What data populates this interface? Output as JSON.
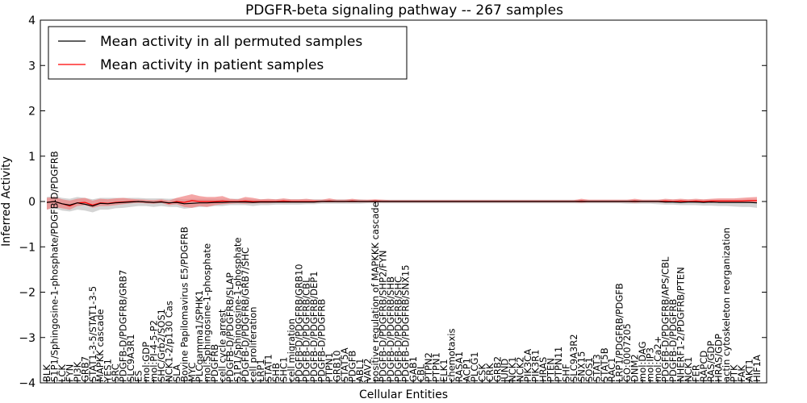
{
  "chart_data": {
    "type": "line",
    "title": "PDGFR-beta signaling pathway -- 267 samples",
    "xlabel": "Cellular Entities",
    "ylabel": "Inferred Activity",
    "ylim": [
      -4,
      4
    ],
    "yticks": [
      "−4",
      "−3",
      "−2",
      "−1",
      "0",
      "1",
      "2",
      "3",
      "4"
    ],
    "legend_position": "top-left",
    "colors": {
      "permuted_line": "#000000",
      "patient_line": "#ff0000",
      "permuted_band": "#b0b0b0",
      "patient_band": "#f08080",
      "frame": "#000000"
    },
    "categories": [
      "BLK",
      "S1P1/Sphingosine-1-phosphate/PDGFB-D/PDGFRB",
      "LCK",
      "FYN",
      "PI3K",
      "GRB7",
      "STAT1-3-5/STAT1-3-5",
      "MAPKK cascade",
      "YES1",
      "SRC",
      "PDGFB-D/PDGFRB/GRB7",
      "SLC9A3R1",
      "ES",
      "mol:GDP",
      "mol:PI-4-5-P2",
      "SHC/Grb2/SOS1",
      "NCK1-2/p130 Cas",
      "SLA",
      "Bovine Papilomavirus E5/PDGFRB",
      "MYC",
      "PLCgamma1/SPHK1",
      "mol:Sphingosine-1-phosphate",
      "PDGFRB",
      "cell cycle arrest",
      "PDGFB-D/PDGFRB/SLAP",
      "S1P1/Sphingosine-1-phosphate",
      "PDGFB-D/PDGFRB/GRB7/SHC",
      "cell proliferation",
      "LRP1",
      "STAT1",
      "SHB",
      "SHC1",
      "cell migration",
      "PDGFB-D/PDGFRB/GRB10",
      "PDGFB-D/PDGFRB/CBL",
      "PDGFB-D/PDGFRB/DEP1",
      "PDGFB-D/PDGFRB",
      "PTPN1",
      "GRB10",
      "STAT5A",
      "PDGFB",
      "ABL1",
      "VAV2",
      "positive regulation of MAPKKK cascade",
      "PDGFB-D/PDGFRB/SHP2/FYN",
      "PDGFB-D/PDGFRB/SHB",
      "PDGFB-D/PDGFRB/SHC",
      "PDGFB-D/PDGFRB/SNX15",
      "GAB1",
      "CBL",
      "PTPN2",
      "PTPN1",
      "ELK1",
      "chemotaxis",
      "RASA1",
      "ACP1",
      "PLCG1",
      "CSK",
      "CRK",
      "GRB2",
      "JUND",
      "NCK1",
      "NCK2",
      "PIK3CA",
      "PIK3R1",
      "HRAS",
      "PTEN",
      "PTPN11",
      "SHF",
      "SLC9A3R2",
      "SNX15",
      "SOS1",
      "STAT3",
      "STAT5B",
      "RAC1",
      "LRP1/PDGFRB/PDGFB",
      "GO:0007205",
      "DNM2",
      "mol:DAG",
      "mol:IP3",
      "mol:Ca2+",
      "PDGFB-D/PDGFRB/APS/CBL",
      "PDGFB-D/PDGFRB",
      "NHERF1-2/PDGFRB/PTEN",
      "NCK1",
      "FER",
      "RAPCD",
      "RAS/GDP",
      "HRAS/GDP",
      "actin cytoskeleton reorganization",
      "PTK",
      "FAK",
      "AKT1",
      "HIF1A"
    ],
    "series": [
      {
        "name": "Mean activity in all permuted samples",
        "values": [
          -0.02,
          0.0,
          -0.05,
          -0.08,
          -0.03,
          -0.06,
          -0.1,
          -0.04,
          -0.05,
          -0.03,
          -0.02,
          -0.01,
          0.0,
          -0.01,
          -0.02,
          -0.01,
          -0.03,
          -0.02,
          -0.05,
          -0.04,
          -0.03,
          -0.03,
          -0.02,
          -0.02,
          -0.01,
          -0.01,
          -0.01,
          -0.02,
          -0.01,
          -0.01,
          -0.01,
          -0.01,
          -0.01,
          -0.01,
          -0.01,
          -0.01,
          0.0,
          0.0,
          0.0,
          0.0,
          0.0,
          0.0,
          0.0,
          0.0,
          0.0,
          0.0,
          0.0,
          0.0,
          0.0,
          0.0,
          0.0,
          0.0,
          0.0,
          0.0,
          0.0,
          0.0,
          0.0,
          0.0,
          0.0,
          0.0,
          0.0,
          0.0,
          0.0,
          0.0,
          0.0,
          0.0,
          0.0,
          0.0,
          0.0,
          0.0,
          0.0,
          0.0,
          0.0,
          0.0,
          0.0,
          0.0,
          0.0,
          0.0,
          0.0,
          0.0,
          0.0,
          -0.01,
          -0.01,
          -0.02,
          -0.01,
          -0.01,
          -0.02,
          -0.01,
          -0.02,
          -0.02,
          -0.02,
          -0.02,
          -0.02,
          -0.03
        ],
        "lower": [
          -0.18,
          -0.15,
          -0.2,
          -0.22,
          -0.18,
          -0.2,
          -0.24,
          -0.18,
          -0.18,
          -0.15,
          -0.14,
          -0.12,
          -0.1,
          -0.1,
          -0.12,
          -0.1,
          -0.12,
          -0.12,
          -0.16,
          -0.14,
          -0.12,
          -0.12,
          -0.1,
          -0.1,
          -0.08,
          -0.08,
          -0.08,
          -0.1,
          -0.08,
          -0.08,
          -0.07,
          -0.07,
          -0.07,
          -0.07,
          -0.06,
          -0.06,
          -0.05,
          -0.05,
          -0.05,
          -0.05,
          -0.05,
          -0.05,
          -0.04,
          -0.04,
          -0.04,
          -0.04,
          -0.04,
          -0.04,
          -0.04,
          -0.04,
          -0.04,
          -0.04,
          -0.04,
          -0.04,
          -0.04,
          -0.04,
          -0.04,
          -0.04,
          -0.04,
          -0.04,
          -0.04,
          -0.04,
          -0.04,
          -0.04,
          -0.04,
          -0.04,
          -0.04,
          -0.04,
          -0.04,
          -0.04,
          -0.04,
          -0.04,
          -0.04,
          -0.04,
          -0.04,
          -0.04,
          -0.05,
          -0.05,
          -0.05,
          -0.05,
          -0.06,
          -0.07,
          -0.07,
          -0.08,
          -0.08,
          -0.08,
          -0.09,
          -0.09,
          -0.1,
          -0.1,
          -0.11,
          -0.12,
          -0.12,
          -0.14
        ],
        "upper": [
          0.1,
          0.12,
          0.08,
          0.06,
          0.1,
          0.08,
          0.05,
          0.08,
          0.08,
          0.08,
          0.08,
          0.08,
          0.08,
          0.07,
          0.07,
          0.07,
          0.06,
          0.07,
          0.05,
          0.06,
          0.06,
          0.06,
          0.06,
          0.06,
          0.06,
          0.06,
          0.06,
          0.05,
          0.05,
          0.05,
          0.05,
          0.05,
          0.05,
          0.05,
          0.05,
          0.05,
          0.05,
          0.05,
          0.05,
          0.05,
          0.05,
          0.05,
          0.04,
          0.04,
          0.04,
          0.04,
          0.04,
          0.04,
          0.04,
          0.04,
          0.04,
          0.04,
          0.04,
          0.04,
          0.04,
          0.04,
          0.04,
          0.04,
          0.04,
          0.04,
          0.04,
          0.04,
          0.04,
          0.04,
          0.04,
          0.04,
          0.04,
          0.04,
          0.04,
          0.04,
          0.04,
          0.04,
          0.04,
          0.04,
          0.04,
          0.04,
          0.04,
          0.04,
          0.04,
          0.04,
          0.04,
          0.04,
          0.04,
          0.04,
          0.04,
          0.04,
          0.04,
          0.04,
          0.04,
          0.04,
          0.04,
          0.04,
          0.04,
          0.04
        ]
      },
      {
        "name": "Mean activity in patient samples",
        "values": [
          -0.02,
          0.0,
          -0.05,
          -0.1,
          -0.03,
          -0.02,
          -0.08,
          -0.03,
          -0.04,
          -0.02,
          -0.01,
          0.0,
          0.0,
          -0.01,
          -0.02,
          0.0,
          -0.04,
          0.0,
          -0.02,
          0.02,
          0.0,
          0.0,
          0.0,
          0.01,
          0.0,
          0.0,
          0.01,
          0.0,
          0.0,
          0.0,
          0.0,
          0.01,
          0.0,
          0.0,
          0.0,
          0.0,
          0.0,
          0.01,
          0.0,
          0.0,
          0.01,
          0.0,
          0.0,
          0.01,
          0.0,
          0.0,
          0.0,
          0.0,
          0.0,
          0.0,
          0.0,
          0.0,
          0.0,
          0.0,
          0.0,
          0.0,
          0.0,
          0.0,
          0.0,
          0.0,
          0.0,
          0.0,
          0.0,
          0.0,
          0.0,
          0.0,
          0.0,
          0.0,
          0.0,
          0.0,
          0.01,
          0.0,
          0.0,
          0.0,
          0.0,
          0.0,
          0.0,
          0.01,
          0.0,
          0.0,
          0.0,
          0.01,
          0.0,
          0.01,
          0.0,
          0.01,
          0.0,
          0.01,
          0.01,
          0.01,
          0.01,
          0.01,
          0.02,
          0.02
        ],
        "lower": [
          -0.18,
          -0.12,
          -0.15,
          -0.18,
          -0.1,
          -0.08,
          -0.14,
          -0.1,
          -0.1,
          -0.08,
          -0.06,
          -0.04,
          -0.03,
          -0.04,
          -0.05,
          -0.03,
          -0.08,
          -0.06,
          -0.12,
          -0.14,
          -0.1,
          -0.12,
          -0.08,
          -0.06,
          -0.05,
          -0.04,
          -0.05,
          -0.04,
          -0.04,
          -0.04,
          -0.03,
          -0.03,
          -0.03,
          -0.03,
          -0.03,
          -0.03,
          -0.02,
          -0.02,
          -0.02,
          -0.02,
          -0.02,
          -0.02,
          -0.02,
          -0.02,
          -0.02,
          -0.02,
          -0.02,
          -0.02,
          -0.02,
          -0.02,
          -0.02,
          -0.02,
          -0.02,
          -0.02,
          -0.02,
          -0.02,
          -0.02,
          -0.02,
          -0.02,
          -0.02,
          -0.02,
          -0.02,
          -0.02,
          -0.02,
          -0.02,
          -0.02,
          -0.02,
          -0.02,
          -0.02,
          -0.02,
          -0.03,
          -0.02,
          -0.02,
          -0.02,
          -0.02,
          -0.02,
          -0.02,
          -0.03,
          -0.02,
          -0.02,
          -0.02,
          -0.03,
          -0.02,
          -0.03,
          -0.02,
          -0.03,
          -0.02,
          -0.03,
          -0.03,
          -0.03,
          -0.03,
          -0.03,
          -0.03,
          -0.03
        ],
        "upper": [
          0.08,
          0.1,
          0.05,
          0.02,
          0.06,
          0.08,
          0.02,
          0.06,
          0.05,
          0.07,
          0.08,
          0.06,
          0.05,
          0.04,
          0.03,
          0.05,
          0.02,
          0.08,
          0.12,
          0.16,
          0.12,
          0.1,
          0.1,
          0.12,
          0.06,
          0.05,
          0.1,
          0.08,
          0.05,
          0.06,
          0.05,
          0.07,
          0.05,
          0.05,
          0.06,
          0.04,
          0.04,
          0.07,
          0.04,
          0.04,
          0.06,
          0.04,
          0.04,
          0.05,
          0.04,
          0.03,
          0.03,
          0.03,
          0.03,
          0.03,
          0.03,
          0.03,
          0.03,
          0.03,
          0.03,
          0.03,
          0.03,
          0.03,
          0.03,
          0.03,
          0.03,
          0.03,
          0.03,
          0.03,
          0.03,
          0.03,
          0.03,
          0.03,
          0.03,
          0.03,
          0.06,
          0.04,
          0.04,
          0.04,
          0.04,
          0.04,
          0.04,
          0.06,
          0.04,
          0.04,
          0.04,
          0.06,
          0.05,
          0.06,
          0.05,
          0.06,
          0.05,
          0.06,
          0.07,
          0.07,
          0.07,
          0.08,
          0.09,
          0.1
        ]
      }
    ]
  }
}
